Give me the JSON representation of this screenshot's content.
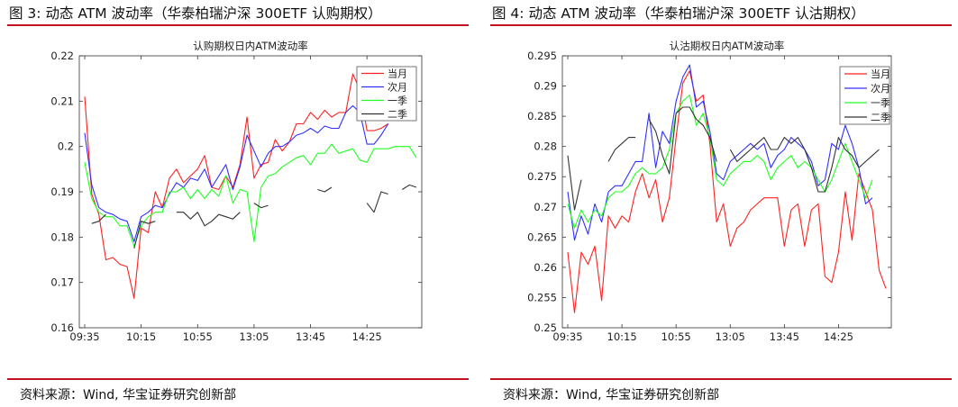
{
  "panels": [
    {
      "figure_title": "图 3:  动态 ATM 波动率（华泰柏瑞沪深 300ETF 认购期权）",
      "source": "资料来源：Wind, 华宝证券研究创新部",
      "chart_data": {
        "type": "line",
        "title": "认购期权日内ATM波动率",
        "xlabel": "",
        "ylabel": "",
        "ylim": [
          0.16,
          0.22
        ],
        "yticks": [
          "0.16",
          "0.17",
          "0.18",
          "0.19",
          "0.2",
          "0.21",
          "0.22"
        ],
        "xticks": [
          "09:35",
          "10:15",
          "10:55",
          "13:05",
          "13:45",
          "14:25"
        ],
        "xtick_index": [
          0,
          8,
          16,
          24,
          32,
          40
        ],
        "n_points": 48,
        "legend": "top-right",
        "grid": false,
        "series": [
          {
            "name": "当月",
            "color": "#ff2020",
            "values": [
              0.211,
              0.1895,
              0.185,
              0.175,
              0.1755,
              0.174,
              0.1735,
              0.1665,
              0.182,
              0.181,
              0.19,
              0.1865,
              0.193,
              0.195,
              0.192,
              0.1935,
              0.195,
              0.198,
              0.191,
              0.1905,
              0.1935,
              0.191,
              0.196,
              0.2065,
              0.193,
              0.196,
              0.1965,
              0.2015,
              0.199,
              0.201,
              0.205,
              0.205,
              0.2075,
              0.206,
              0.208,
              0.2065,
              0.2075,
              0.2075,
              0.216,
              0.2125,
              0.2035,
              0.2035,
              0.204,
              0.205,
              null,
              null,
              null,
              null
            ]
          },
          {
            "name": "次月",
            "color": "#3030ff",
            "values": [
              0.203,
              0.1915,
              0.1865,
              0.1855,
              0.185,
              0.184,
              0.1835,
              0.179,
              0.1845,
              0.1855,
              0.187,
              0.1865,
              0.1895,
              0.192,
              0.191,
              0.193,
              0.1925,
              0.195,
              0.191,
              0.1935,
              0.196,
              0.1905,
              0.1955,
              0.2025,
              0.199,
              0.1955,
              0.1985,
              0.2,
              0.2,
              0.201,
              0.2025,
              0.203,
              0.204,
              0.203,
              0.2045,
              0.204,
              0.204,
              0.2075,
              0.209,
              0.2075,
              0.2005,
              0.2005,
              0.2025,
              0.205,
              null,
              null,
              null,
              null
            ]
          },
          {
            "name": "一季",
            "color": "#20ff20",
            "values": [
              0.1965,
              0.1885,
              0.1855,
              0.1845,
              0.1845,
              0.1825,
              0.1825,
              0.178,
              0.1825,
              0.1845,
              0.1855,
              0.1855,
              0.19,
              0.19,
              0.191,
              0.1885,
              0.1905,
              0.1885,
              0.1905,
              0.189,
              0.1935,
              0.1875,
              0.1905,
              0.19,
              0.179,
              0.191,
              0.1935,
              0.194,
              0.1955,
              0.1965,
              0.1975,
              0.198,
              0.196,
              0.1985,
              0.1985,
              0.2005,
              0.1985,
              0.199,
              0.1995,
              0.197,
              0.1965,
              0.1995,
              0.1995,
              0.1995,
              0.2,
              0.2,
              0.2,
              0.1975
            ]
          },
          {
            "name": "二季",
            "color": "#333333",
            "values": [
              null,
              0.183,
              0.1835,
              0.185,
              null,
              0.1845,
              null,
              0.1775,
              0.1835,
              0.183,
              0.1835,
              null,
              null,
              0.1855,
              0.1855,
              0.184,
              0.1855,
              0.1825,
              0.1835,
              0.185,
              0.1845,
              0.184,
              0.1855,
              null,
              0.1875,
              0.1865,
              0.187,
              null,
              null,
              null,
              null,
              null,
              null,
              0.1905,
              0.19,
              0.191,
              null,
              null,
              null,
              null,
              0.1875,
              0.1855,
              0.19,
              0.1895,
              null,
              0.1905,
              0.1915,
              0.191
            ]
          }
        ]
      }
    },
    {
      "figure_title": "图 4:  动态 ATM 波动率（华泰柏瑞沪深 300ETF 认沽期权）",
      "source": "资料来源：Wind, 华宝证券研究创新部",
      "chart_data": {
        "type": "line",
        "title": "认沽期权日内ATM波动率",
        "xlabel": "",
        "ylabel": "",
        "ylim": [
          0.25,
          0.295
        ],
        "yticks": [
          "0.25",
          "0.255",
          "0.26",
          "0.265",
          "0.27",
          "0.275",
          "0.28",
          "0.285",
          "0.29",
          "0.295"
        ],
        "xticks": [
          "09:35",
          "10:15",
          "10:55",
          "13:05",
          "13:45",
          "14:25"
        ],
        "xtick_index": [
          0,
          8,
          16,
          24,
          32,
          40
        ],
        "n_points": 48,
        "legend": "top-right",
        "grid": false,
        "series": [
          {
            "name": "当月",
            "color": "#ff2020",
            "values": [
              0.2625,
              0.2525,
              0.2625,
              0.2605,
              0.2635,
              0.2545,
              0.2685,
              0.2665,
              0.2685,
              0.2675,
              0.2725,
              0.2755,
              0.2715,
              0.2745,
              0.2675,
              0.2715,
              0.2815,
              0.2905,
              0.2925,
              0.2875,
              0.2885,
              0.2805,
              0.2675,
              0.2705,
              0.2635,
              0.2665,
              0.2675,
              0.2695,
              0.2705,
              0.2715,
              0.2715,
              0.2715,
              0.2635,
              0.2695,
              0.2705,
              0.2635,
              0.2695,
              0.2705,
              0.2585,
              0.2575,
              0.2625,
              0.2725,
              0.2645,
              0.2755,
              0.2725,
              0.2695,
              0.2595,
              0.2565
            ]
          },
          {
            "name": "次月",
            "color": "#3030ff",
            "values": [
              0.2725,
              0.2645,
              0.2685,
              0.2655,
              0.2705,
              0.2675,
              0.2725,
              0.2735,
              0.2735,
              0.2755,
              0.2775,
              0.2775,
              0.2855,
              0.2765,
              0.2825,
              0.2805,
              0.2875,
              0.2915,
              0.2935,
              0.2865,
              0.2875,
              0.2825,
              0.2755,
              0.2745,
              0.2775,
              0.2785,
              0.2795,
              0.2805,
              0.2795,
              0.2805,
              0.2765,
              0.2785,
              0.2795,
              0.2815,
              0.2805,
              0.2795,
              0.2775,
              0.2735,
              0.2745,
              0.2805,
              0.2795,
              0.2835,
              0.2805,
              0.2765,
              0.2705,
              0.2715,
              null,
              null
            ]
          },
          {
            "name": "一季",
            "color": "#20ff20",
            "values": [
              0.2705,
              0.2665,
              0.2695,
              0.2675,
              0.2695,
              0.2685,
              0.2715,
              0.2725,
              0.2725,
              0.2735,
              0.2755,
              0.2765,
              0.2755,
              0.2755,
              0.2765,
              0.2795,
              0.2855,
              0.2875,
              0.2885,
              0.2835,
              0.2855,
              0.2815,
              0.2745,
              0.2735,
              0.2755,
              0.2765,
              0.2775,
              0.2775,
              0.2785,
              0.2775,
              0.2745,
              0.2765,
              0.2775,
              0.2785,
              0.2765,
              0.2775,
              0.2765,
              0.2745,
              0.2725,
              0.2745,
              0.2775,
              0.2805,
              0.2775,
              0.2745,
              0.2715,
              0.2745,
              null,
              null
            ]
          },
          {
            "name": "二季",
            "color": "#333333",
            "values": [
              0.2785,
              0.2695,
              0.2745,
              null,
              null,
              null,
              0.2775,
              0.2795,
              0.2805,
              0.2815,
              0.2815,
              null,
              0.2845,
              0.2825,
              0.2785,
              0.2755,
              0.2855,
              0.2865,
              0.2865,
              0.2845,
              0.2835,
              0.2815,
              0.2775,
              null,
              0.2795,
              0.2775,
              0.2785,
              0.2795,
              0.2805,
              0.2815,
              0.2795,
              0.2795,
              0.2815,
              0.2805,
              0.2815,
              0.2795,
              0.2765,
              0.2725,
              0.2725,
              0.2765,
              0.2815,
              0.2795,
              0.2785,
              0.2765,
              0.2775,
              0.2785,
              0.2795,
              null
            ]
          }
        ]
      }
    }
  ]
}
